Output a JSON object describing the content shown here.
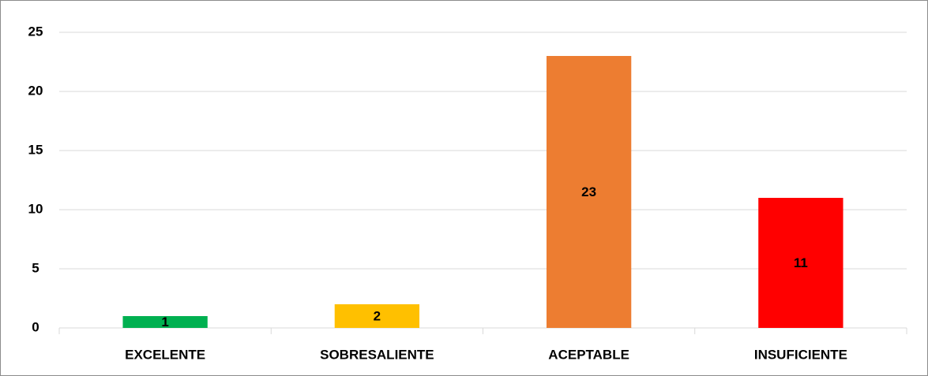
{
  "chart_data": {
    "type": "bar",
    "categories": [
      "EXCELENTE",
      "SOBRESALIENTE",
      "ACEPTABLE",
      "INSUFICIENTE"
    ],
    "values": [
      1,
      2,
      23,
      11
    ],
    "colors": [
      "#00b050",
      "#ffc000",
      "#ed7d31",
      "#ff0000"
    ],
    "ylim": [
      0,
      25
    ],
    "yticks": [
      0,
      5,
      10,
      15,
      20,
      25
    ],
    "grid": true
  }
}
